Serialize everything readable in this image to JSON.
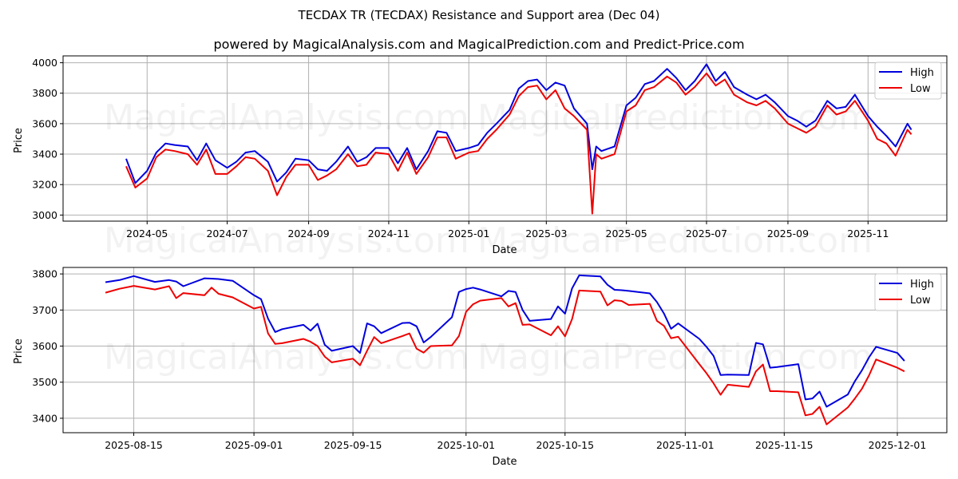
{
  "header": {
    "title": "TECDAX TR (TECDAX) Resistance and Support area (Dec 04)",
    "subtitle": "powered by MagicalAnalysis.com and MagicalPrediction.com and Predict-Price.com"
  },
  "watermarks": [
    "MagicalAnalysis.com",
    "MagicalPrediction.com"
  ],
  "colors": {
    "high": "#0000dd",
    "low": "#ee0000",
    "grid": "#b0b0b0"
  },
  "legend": {
    "high_label": "High",
    "low_label": "Low"
  },
  "chart_data": [
    {
      "type": "line",
      "title": "",
      "xlabel": "Date",
      "ylabel": "Price",
      "ylim": [
        2960,
        4045
      ],
      "yticks": [
        3000,
        3200,
        3400,
        3600,
        3800,
        4000
      ],
      "xticks": [
        "2024-05",
        "2024-07",
        "2024-09",
        "2024-11",
        "2025-01",
        "2025-03",
        "2025-05",
        "2025-07",
        "2025-09",
        "2025-11"
      ],
      "grid": true,
      "legend_position": "upper right",
      "x": [
        "2024-04-15",
        "2024-04-22",
        "2024-05-01",
        "2024-05-08",
        "2024-05-15",
        "2024-05-22",
        "2024-06-01",
        "2024-06-08",
        "2024-06-15",
        "2024-06-22",
        "2024-07-01",
        "2024-07-08",
        "2024-07-15",
        "2024-07-22",
        "2024-08-01",
        "2024-08-08",
        "2024-08-15",
        "2024-08-22",
        "2024-09-01",
        "2024-09-08",
        "2024-09-15",
        "2024-09-22",
        "2024-10-01",
        "2024-10-08",
        "2024-10-15",
        "2024-10-22",
        "2024-11-01",
        "2024-11-08",
        "2024-11-15",
        "2024-11-22",
        "2024-12-01",
        "2024-12-08",
        "2024-12-15",
        "2024-12-22",
        "2025-01-01",
        "2025-01-08",
        "2025-01-15",
        "2025-01-22",
        "2025-02-01",
        "2025-02-08",
        "2025-02-15",
        "2025-02-22",
        "2025-03-01",
        "2025-03-08",
        "2025-03-15",
        "2025-03-22",
        "2025-04-01",
        "2025-04-05",
        "2025-04-08",
        "2025-04-12",
        "2025-04-22",
        "2025-05-01",
        "2025-05-08",
        "2025-05-15",
        "2025-05-22",
        "2025-06-01",
        "2025-06-08",
        "2025-06-15",
        "2025-06-22",
        "2025-07-01",
        "2025-07-08",
        "2025-07-15",
        "2025-07-22",
        "2025-08-01",
        "2025-08-08",
        "2025-08-15",
        "2025-08-22",
        "2025-09-01",
        "2025-09-08",
        "2025-09-15",
        "2025-09-22",
        "2025-10-01",
        "2025-10-08",
        "2025-10-15",
        "2025-10-22",
        "2025-11-01",
        "2025-11-08",
        "2025-11-15",
        "2025-11-22",
        "2025-12-01",
        "2025-12-04"
      ],
      "series": [
        {
          "name": "High",
          "values": [
            3370,
            3210,
            3290,
            3410,
            3470,
            3460,
            3450,
            3360,
            3470,
            3360,
            3310,
            3350,
            3410,
            3420,
            3350,
            3220,
            3280,
            3370,
            3360,
            3300,
            3290,
            3350,
            3450,
            3350,
            3380,
            3440,
            3440,
            3340,
            3440,
            3300,
            3420,
            3550,
            3540,
            3420,
            3440,
            3460,
            3540,
            3600,
            3690,
            3830,
            3880,
            3890,
            3820,
            3870,
            3850,
            3700,
            3600,
            3300,
            3450,
            3420,
            3450,
            3720,
            3770,
            3860,
            3880,
            3960,
            3900,
            3820,
            3880,
            3990,
            3880,
            3940,
            3840,
            3790,
            3760,
            3790,
            3740,
            3650,
            3620,
            3580,
            3620,
            3750,
            3700,
            3710,
            3790,
            3650,
            3580,
            3520,
            3450,
            3600,
            3560
          ]
        },
        {
          "name": "Low",
          "values": [
            3320,
            3180,
            3240,
            3380,
            3430,
            3420,
            3400,
            3330,
            3430,
            3270,
            3270,
            3320,
            3380,
            3370,
            3290,
            3130,
            3250,
            3330,
            3330,
            3230,
            3260,
            3300,
            3400,
            3320,
            3330,
            3410,
            3400,
            3290,
            3410,
            3270,
            3380,
            3510,
            3510,
            3370,
            3410,
            3420,
            3500,
            3560,
            3660,
            3780,
            3840,
            3850,
            3760,
            3820,
            3700,
            3650,
            3560,
            3010,
            3400,
            3370,
            3400,
            3680,
            3720,
            3820,
            3840,
            3910,
            3870,
            3790,
            3840,
            3930,
            3850,
            3890,
            3790,
            3740,
            3720,
            3750,
            3700,
            3600,
            3570,
            3540,
            3580,
            3720,
            3660,
            3680,
            3750,
            3620,
            3500,
            3470,
            3390,
            3560,
            3530
          ]
        }
      ]
    },
    {
      "type": "line",
      "title": "",
      "xlabel": "Date",
      "ylabel": "Price",
      "ylim": [
        3360,
        3818
      ],
      "yticks": [
        3400,
        3500,
        3600,
        3700,
        3800
      ],
      "xticks": [
        "2025-08-15",
        "2025-09-01",
        "2025-09-15",
        "2025-10-01",
        "2025-10-15",
        "2025-11-01",
        "2025-11-15",
        "2025-12-01"
      ],
      "grid": true,
      "legend_position": "upper right",
      "x": [
        "2025-08-11",
        "2025-08-13",
        "2025-08-15",
        "2025-08-18",
        "2025-08-20",
        "2025-08-21",
        "2025-08-22",
        "2025-08-25",
        "2025-08-26",
        "2025-08-27",
        "2025-08-29",
        "2025-09-01",
        "2025-09-02",
        "2025-09-03",
        "2025-09-04",
        "2025-09-05",
        "2025-09-08",
        "2025-09-09",
        "2025-09-10",
        "2025-09-11",
        "2025-09-12",
        "2025-09-15",
        "2025-09-16",
        "2025-09-17",
        "2025-09-18",
        "2025-09-19",
        "2025-09-22",
        "2025-09-23",
        "2025-09-24",
        "2025-09-25",
        "2025-09-26",
        "2025-09-29",
        "2025-09-30",
        "2025-10-01",
        "2025-10-02",
        "2025-10-03",
        "2025-10-06",
        "2025-10-07",
        "2025-10-08",
        "2025-10-09",
        "2025-10-10",
        "2025-10-13",
        "2025-10-14",
        "2025-10-15",
        "2025-10-16",
        "2025-10-17",
        "2025-10-20",
        "2025-10-21",
        "2025-10-22",
        "2025-10-23",
        "2025-10-24",
        "2025-10-27",
        "2025-10-28",
        "2025-10-29",
        "2025-10-30",
        "2025-10-31",
        "2025-11-03",
        "2025-11-04",
        "2025-11-05",
        "2025-11-06",
        "2025-11-07",
        "2025-11-10",
        "2025-11-11",
        "2025-11-12",
        "2025-11-13",
        "2025-11-14",
        "2025-11-17",
        "2025-11-18",
        "2025-11-19",
        "2025-11-20",
        "2025-11-21",
        "2025-11-24",
        "2025-11-25",
        "2025-11-26",
        "2025-11-27",
        "2025-11-28",
        "2025-12-01",
        "2025-12-02"
      ],
      "series": [
        {
          "name": "High",
          "values": [
            3777,
            3783,
            3794,
            3778,
            3783,
            3779,
            3766,
            3788,
            3787,
            3786,
            3781,
            3741,
            3730,
            3676,
            3639,
            3647,
            3659,
            3643,
            3662,
            3604,
            3587,
            3600,
            3581,
            3663,
            3655,
            3636,
            3664,
            3665,
            3655,
            3610,
            3625,
            3680,
            3750,
            3758,
            3762,
            3757,
            3738,
            3753,
            3750,
            3700,
            3670,
            3675,
            3710,
            3690,
            3760,
            3796,
            3793,
            3770,
            3756,
            3755,
            3753,
            3746,
            3722,
            3690,
            3648,
            3663,
            3620,
            3598,
            3573,
            3520,
            3521,
            3520,
            3609,
            3605,
            3540,
            3542,
            3550,
            3452,
            3455,
            3474,
            3432,
            3466,
            3503,
            3533,
            3569,
            3598,
            3581,
            3559
          ]
        },
        {
          "name": "Low",
          "values": [
            3748,
            3759,
            3767,
            3757,
            3766,
            3733,
            3747,
            3741,
            3762,
            3745,
            3735,
            3704,
            3709,
            3635,
            3606,
            3608,
            3620,
            3612,
            3600,
            3571,
            3555,
            3565,
            3547,
            3587,
            3625,
            3608,
            3628,
            3635,
            3593,
            3582,
            3600,
            3602,
            3628,
            3695,
            3716,
            3726,
            3733,
            3710,
            3719,
            3659,
            3660,
            3630,
            3655,
            3627,
            3675,
            3754,
            3751,
            3713,
            3727,
            3725,
            3714,
            3717,
            3670,
            3656,
            3622,
            3626,
            3550,
            3525,
            3497,
            3465,
            3493,
            3487,
            3530,
            3549,
            3475,
            3475,
            3472,
            3408,
            3412,
            3432,
            3383,
            3430,
            3455,
            3482,
            3519,
            3563,
            3540,
            3530
          ]
        }
      ]
    }
  ]
}
